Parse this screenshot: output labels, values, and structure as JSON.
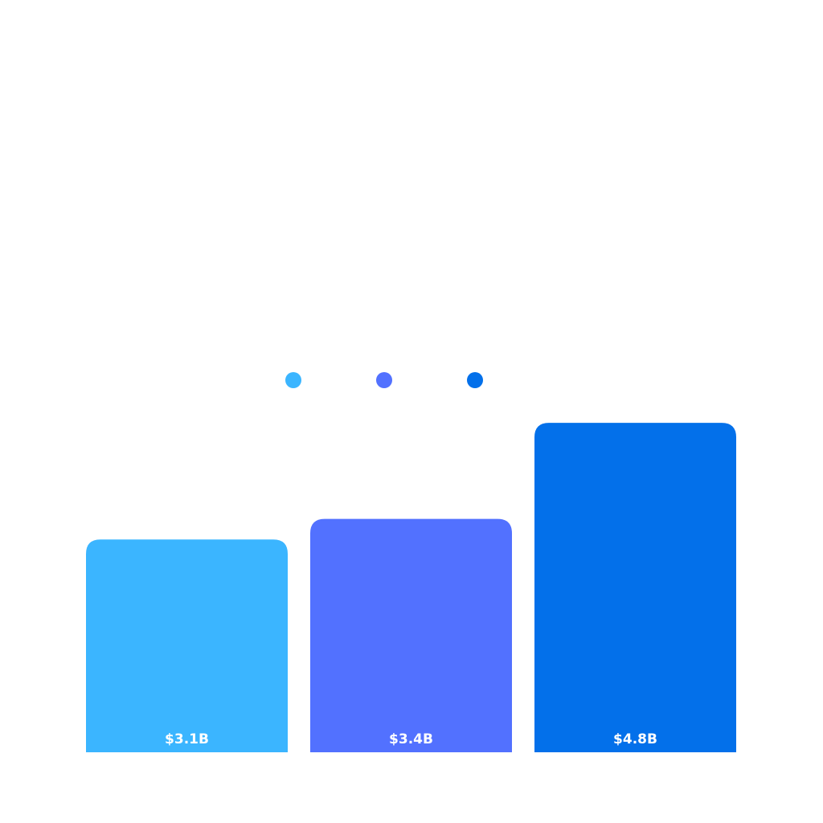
{
  "chart_data": {
    "type": "bar",
    "categories": [
      "",
      "",
      ""
    ],
    "values": [
      3.1,
      3.4,
      4.8
    ],
    "labels": [
      "$3.1B",
      "$3.4B",
      "$4.8B"
    ],
    "colors": [
      "#3bb5ff",
      "#5271ff",
      "#0370ea"
    ],
    "legend_markers": [
      "#3bb5ff",
      "#5271ff",
      "#0370ea"
    ],
    "legend_position": "above-center",
    "ylim": [
      0,
      5
    ],
    "grid": false,
    "title": "",
    "xlabel": "",
    "ylabel": ""
  }
}
